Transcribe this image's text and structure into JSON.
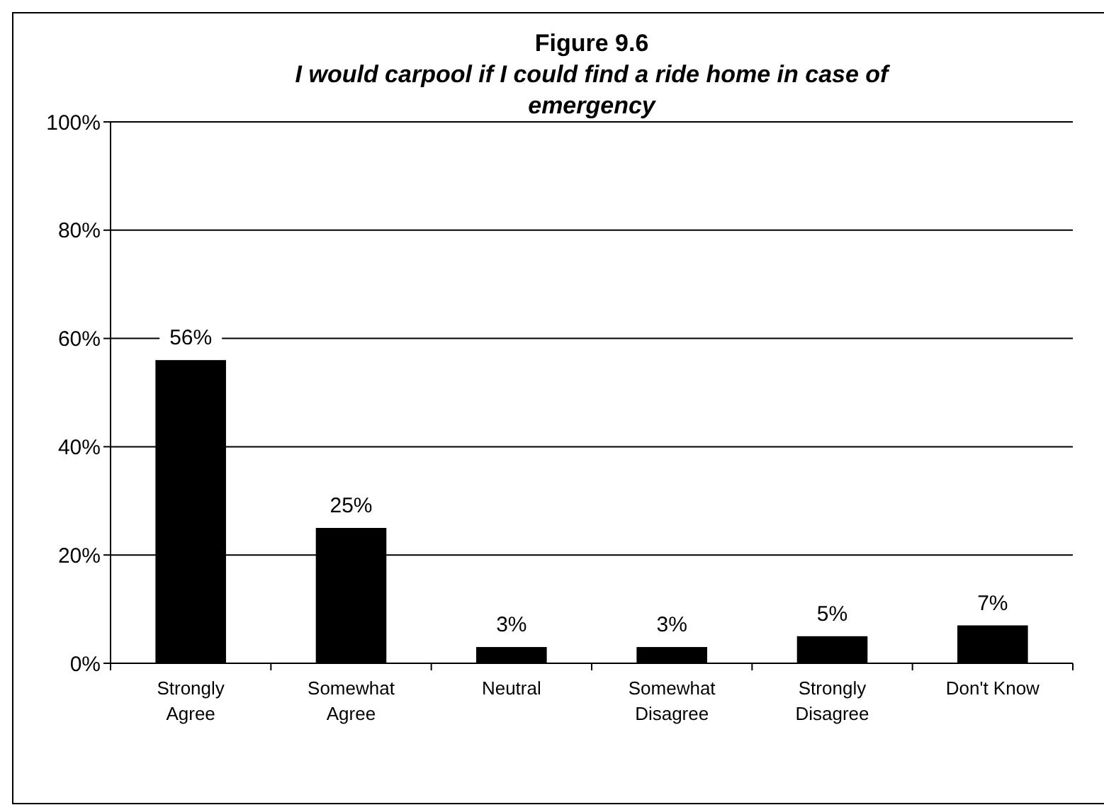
{
  "chart_data": {
    "type": "bar",
    "title": "Figure 9.6",
    "subtitle": "I would carpool if I could find a ride home in case of emergency",
    "categories": [
      "Strongly Agree",
      "Somewhat Agree",
      "Neutral",
      "Somewhat Disagree",
      "Strongly Disagree",
      "Don't Know"
    ],
    "values": [
      56,
      25,
      3,
      3,
      5,
      7
    ],
    "color": "#000000",
    "value_labels": [
      "56%",
      "25%",
      "3%",
      "3%",
      "5%",
      "7%"
    ],
    "ylim": [
      0,
      100
    ],
    "yticks": [
      {
        "value": 0,
        "label": "0%"
      },
      {
        "value": 20,
        "label": "20%"
      },
      {
        "value": 40,
        "label": "40%"
      },
      {
        "value": 60,
        "label": "60%"
      },
      {
        "value": 80,
        "label": "80%"
      },
      {
        "value": 100,
        "label": "100%"
      }
    ],
    "grid": "y"
  }
}
